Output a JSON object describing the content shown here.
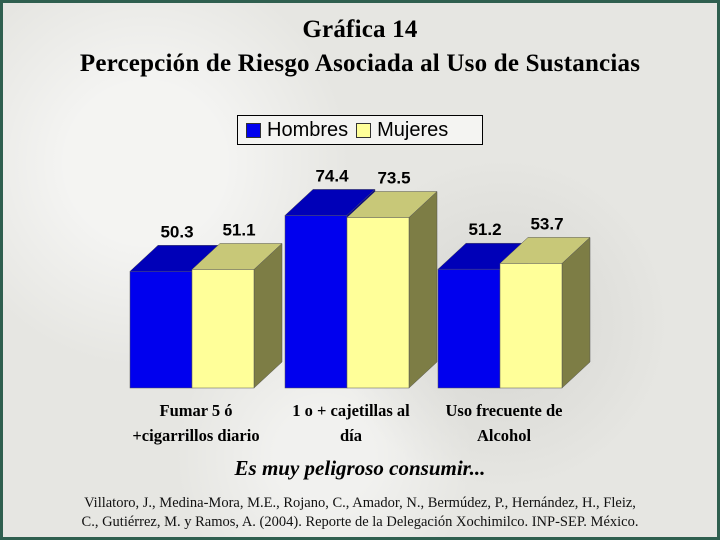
{
  "header": {
    "title": "Gráfica 14",
    "subtitle": "Percepción de Riesgo Asociada al Uso de Sustancias"
  },
  "chart_data": {
    "type": "bar",
    "title": "Gráfica 14",
    "subtitle": "Percepción de Riesgo Asociada al Uso de Sustancias",
    "categories": [
      [
        "Fumar 5 ó",
        "+cigarrillos diario"
      ],
      [
        "1 o + cajetillas al",
        "día"
      ],
      [
        "Uso frecuente de",
        "Alcohol"
      ]
    ],
    "series": [
      {
        "name": "Hombres",
        "values": [
          50.3,
          74.4,
          51.2
        ],
        "color": "#0000ee"
      },
      {
        "name": "Mujeres",
        "values": [
          51.1,
          73.5,
          53.7
        ],
        "color": "#ffff99"
      }
    ],
    "data_labels": [
      [
        "50.3",
        "74.4",
        "51.2"
      ],
      [
        "51.1",
        "73.5",
        "53.7"
      ]
    ],
    "style": "3d-clustered-column",
    "legend_position": "top",
    "grid": false,
    "ylim": [
      0,
      80
    ]
  },
  "footer": {
    "note": "Es muy peligroso consumir...",
    "source_line1": "Villatoro, J., Medina-Mora, M.E., Rojano, C., Amador, N., Bermúdez, P., Hernández, H., Fleiz,",
    "source_line2": "C., Gutiérrez, M. y Ramos, A. (2004). Reporte de la Delegación Xochimilco. INP-SEP. México."
  }
}
